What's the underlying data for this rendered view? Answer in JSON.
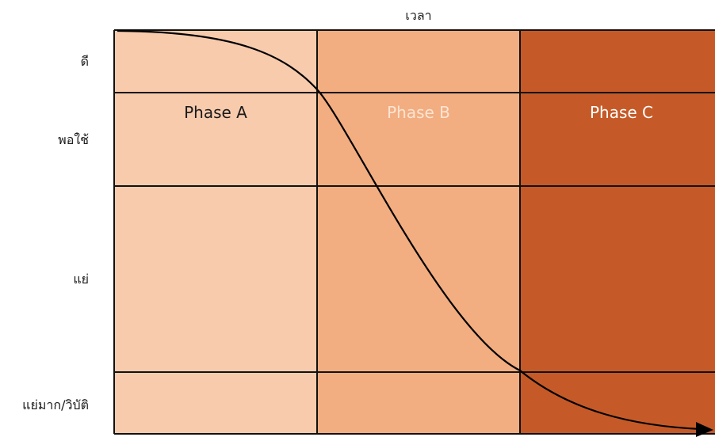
{
  "x_axis": {
    "title": "เวลา"
  },
  "y_levels": [
    {
      "id": "good",
      "label": "ดี"
    },
    {
      "id": "fair",
      "label": "พอใช้"
    },
    {
      "id": "poor",
      "label": "แย่"
    },
    {
      "id": "crisis",
      "label": "แย่มาก/วิบัติ"
    }
  ],
  "phases": [
    {
      "label": "Phase A",
      "fill": "#f8cbad",
      "text_color": "#1a1a1a"
    },
    {
      "label": "Phase B",
      "fill": "#f2ad80",
      "text_color": "#fde4d3"
    },
    {
      "label": "Phase C",
      "fill": "#c55a28",
      "text_color": "#ffffff"
    }
  ],
  "colors": {
    "grid": "#111111",
    "curve": "#000000"
  }
}
